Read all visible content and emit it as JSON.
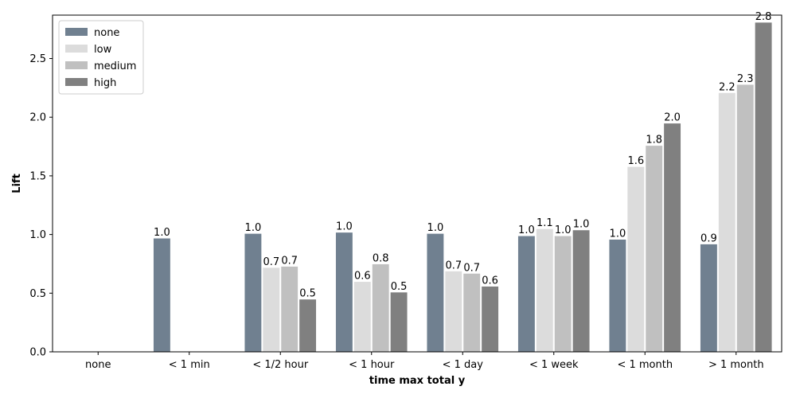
{
  "chart_data": {
    "type": "bar",
    "title": "",
    "xlabel": "time max total y",
    "ylabel": "Lift",
    "ylim": [
      0,
      2.87
    ],
    "yticks": [
      "0.0",
      "0.5",
      "1.0",
      "1.5",
      "2.0",
      "2.5"
    ],
    "grid": false,
    "legend_position": "top-left",
    "categories": [
      "none",
      "< 1 min",
      "< 1/2 hour",
      "< 1 hour",
      "< 1 day",
      "< 1 week",
      "< 1 month",
      "> 1 month"
    ],
    "series": [
      {
        "name": "none",
        "color": "#708090",
        "values": [
          null,
          0.97,
          1.01,
          1.02,
          1.01,
          0.99,
          0.96,
          0.92
        ],
        "labels": [
          "",
          "1.0",
          "1.0",
          "1.0",
          "1.0",
          "1.0",
          "1.0",
          "0.9"
        ]
      },
      {
        "name": "low",
        "color": "#dcdcdc",
        "values": [
          null,
          null,
          0.72,
          0.6,
          0.69,
          1.05,
          1.58,
          2.21
        ],
        "labels": [
          "",
          "",
          "0.7",
          "0.6",
          "0.7",
          "1.1",
          "1.6",
          "2.2"
        ]
      },
      {
        "name": "medium",
        "color": "#c0c0c0",
        "values": [
          null,
          null,
          0.73,
          0.75,
          0.67,
          0.99,
          1.76,
          2.28
        ],
        "labels": [
          "",
          "",
          "0.7",
          "0.8",
          "0.7",
          "1.0",
          "1.8",
          "2.3"
        ]
      },
      {
        "name": "high",
        "color": "#808080",
        "values": [
          null,
          null,
          0.45,
          0.51,
          0.56,
          1.04,
          1.95,
          2.81
        ],
        "labels": [
          "",
          "",
          "0.5",
          "0.5",
          "0.6",
          "1.0",
          "2.0",
          "2.8"
        ]
      }
    ]
  }
}
